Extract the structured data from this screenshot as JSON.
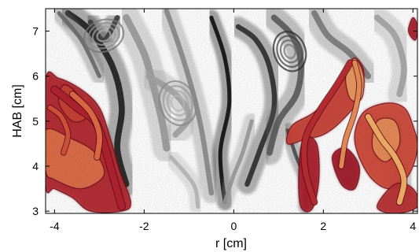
{
  "chart_data": {
    "type": "heatmap",
    "title": "",
    "xlabel": "r [cm]",
    "ylabel": "HAB [cm]",
    "xlim": [
      -4.2,
      4.1
    ],
    "ylim": [
      2.95,
      7.5
    ],
    "xticks": [
      -4,
      -2,
      0,
      2,
      4
    ],
    "yticks": [
      3,
      4,
      5,
      6,
      7
    ],
    "grid": false,
    "legend": "none",
    "layers": [
      {
        "name": "grayscale",
        "colormap": [
          "#ffffff",
          "#9a9a9a",
          "#000000"
        ]
      },
      {
        "name": "hot",
        "colormap": [
          "#5a0a14",
          "#b02030",
          "#e06040",
          "#f8d27a"
        ]
      }
    ],
    "gray_streaks": [
      {
        "pts": [
          [
            -3.7,
            7.4
          ],
          [
            -3.2,
            7.0
          ],
          [
            -2.7,
            6.2
          ],
          [
            -2.5,
            5.3
          ],
          [
            -2.6,
            4.4
          ],
          [
            -2.4,
            3.6
          ]
        ],
        "level": 0.9,
        "w": 0.3
      },
      {
        "pts": [
          [
            -3.2,
            7.2
          ],
          [
            -2.9,
            6.8
          ],
          [
            -2.6,
            7.3
          ]
        ],
        "level": 0.8,
        "w": 0.25
      },
      {
        "pts": [
          [
            -2.4,
            7.3
          ],
          [
            -2.0,
            6.5
          ],
          [
            -1.8,
            5.8
          ],
          [
            -1.6,
            5.0
          ],
          [
            -1.5,
            4.4
          ]
        ],
        "level": 0.5,
        "w": 0.35
      },
      {
        "pts": [
          [
            -1.5,
            7.45
          ],
          [
            -1.2,
            6.6
          ],
          [
            -0.9,
            5.6
          ],
          [
            -0.7,
            4.7
          ],
          [
            -0.5,
            3.4
          ]
        ],
        "level": 0.55,
        "w": 0.25
      },
      {
        "pts": [
          [
            -1.9,
            6.0
          ],
          [
            -1.3,
            5.6
          ],
          [
            -1.0,
            5.1
          ],
          [
            -1.3,
            4.7
          ]
        ],
        "level": 0.45,
        "w": 0.3
      },
      {
        "pts": [
          [
            -0.5,
            7.3
          ],
          [
            -0.2,
            6.4
          ],
          [
            -0.1,
            5.4
          ],
          [
            -0.3,
            4.3
          ],
          [
            -0.2,
            3.2
          ]
        ],
        "level": 0.95,
        "w": 0.2
      },
      {
        "pts": [
          [
            0.1,
            7.1
          ],
          [
            0.5,
            6.8
          ],
          [
            0.8,
            6.2
          ],
          [
            0.9,
            5.3
          ],
          [
            0.6,
            4.4
          ],
          [
            0.3,
            3.6
          ]
        ],
        "level": 0.85,
        "w": 0.25
      },
      {
        "pts": [
          [
            0.9,
            7.3
          ],
          [
            1.3,
            6.9
          ],
          [
            1.5,
            6.3
          ],
          [
            1.4,
            5.6
          ],
          [
            1.0,
            5.0
          ],
          [
            0.8,
            4.3
          ]
        ],
        "level": 0.7,
        "w": 0.3
      },
      {
        "pts": [
          [
            1.8,
            7.4
          ],
          [
            2.1,
            6.9
          ],
          [
            2.6,
            6.5
          ],
          [
            3.0,
            6.0
          ]
        ],
        "level": 0.6,
        "w": 0.3
      },
      {
        "pts": [
          [
            3.2,
            7.3
          ],
          [
            3.6,
            6.9
          ],
          [
            3.8,
            6.2
          ],
          [
            3.7,
            5.6
          ]
        ],
        "level": 0.45,
        "w": 0.3
      },
      {
        "pts": [
          [
            0.4,
            5.0
          ],
          [
            0.2,
            4.3
          ],
          [
            0.0,
            3.8
          ],
          [
            -0.2,
            3.2
          ]
        ],
        "level": 0.5,
        "w": 0.2
      },
      {
        "pts": [
          [
            1.2,
            4.8
          ],
          [
            1.4,
            4.2
          ],
          [
            1.6,
            3.7
          ],
          [
            1.6,
            3.1
          ]
        ],
        "level": 0.75,
        "w": 0.18
      },
      {
        "pts": [
          [
            3.3,
            4.6
          ],
          [
            3.6,
            4.0
          ],
          [
            3.9,
            3.4
          ]
        ],
        "level": 0.55,
        "w": 0.3
      },
      {
        "pts": [
          [
            -3.9,
            7.4
          ],
          [
            -3.4,
            6.8
          ],
          [
            -3.0,
            6.0
          ]
        ],
        "level": 0.65,
        "w": 0.2
      },
      {
        "pts": [
          [
            -1.4,
            4.2
          ],
          [
            -0.9,
            3.6
          ],
          [
            -0.8,
            3.1
          ]
        ],
        "level": 0.35,
        "w": 0.2
      }
    ],
    "gray_vortices": [
      {
        "cx": 1.25,
        "cy": 6.55,
        "rx": 0.35,
        "ry": 0.45,
        "level": 0.85
      },
      {
        "cx": -1.25,
        "cy": 5.4,
        "rx": 0.4,
        "ry": 0.5,
        "level": 0.55
      },
      {
        "cx": -2.9,
        "cy": 6.9,
        "rx": 0.45,
        "ry": 0.35,
        "level": 0.6
      }
    ],
    "hot_regions": [
      {
        "pts": [
          [
            -4.2,
            5.9
          ],
          [
            -3.9,
            5.95
          ],
          [
            -3.4,
            5.7
          ],
          [
            -3.0,
            5.3
          ],
          [
            -2.75,
            4.6
          ],
          [
            -2.55,
            3.9
          ],
          [
            -2.3,
            3.2
          ],
          [
            -2.5,
            3.0
          ],
          [
            -3.2,
            3.0
          ],
          [
            -3.6,
            3.3
          ],
          [
            -4.0,
            3.5
          ],
          [
            -4.2,
            3.6
          ]
        ],
        "level": 0.4
      },
      {
        "pts": [
          [
            -4.2,
            4.8
          ],
          [
            -3.6,
            4.6
          ],
          [
            -3.1,
            4.3
          ],
          [
            -2.9,
            3.8
          ],
          [
            -3.4,
            3.5
          ],
          [
            -4.0,
            3.7
          ],
          [
            -4.2,
            3.9
          ]
        ],
        "level": 0.75
      },
      {
        "pts": [
          [
            -3.8,
            5.8
          ],
          [
            -3.5,
            5.6
          ],
          [
            -3.3,
            5.1
          ],
          [
            -3.6,
            5.0
          ],
          [
            -3.9,
            5.4
          ]
        ],
        "level": 0.55
      },
      {
        "pts": [
          [
            1.3,
            4.9
          ],
          [
            1.8,
            5.2
          ],
          [
            2.3,
            5.7
          ],
          [
            2.5,
            6.1
          ],
          [
            2.7,
            6.4
          ],
          [
            2.9,
            6.1
          ],
          [
            2.8,
            5.5
          ],
          [
            2.4,
            5.0
          ],
          [
            2.0,
            4.7
          ],
          [
            1.6,
            4.6
          ],
          [
            1.2,
            4.5
          ]
        ],
        "level": 0.55
      },
      {
        "pts": [
          [
            2.5,
            6.0
          ],
          [
            2.7,
            6.4
          ],
          [
            2.9,
            6.0
          ],
          [
            2.85,
            5.5
          ],
          [
            2.6,
            5.5
          ]
        ],
        "level": 0.9
      },
      {
        "pts": [
          [
            2.9,
            5.2
          ],
          [
            3.4,
            5.4
          ],
          [
            3.8,
            5.3
          ],
          [
            4.0,
            4.9
          ],
          [
            4.1,
            4.4
          ],
          [
            3.9,
            3.8
          ],
          [
            3.5,
            3.5
          ],
          [
            3.1,
            3.7
          ],
          [
            2.8,
            4.2
          ],
          [
            2.7,
            4.7
          ]
        ],
        "level": 0.6
      },
      {
        "pts": [
          [
            3.2,
            5.0
          ],
          [
            3.6,
            5.0
          ],
          [
            3.7,
            4.5
          ],
          [
            3.4,
            4.1
          ],
          [
            3.1,
            4.4
          ]
        ],
        "level": 0.85
      },
      {
        "pts": [
          [
            3.6,
            3.6
          ],
          [
            4.0,
            3.5
          ],
          [
            4.1,
            3.1
          ],
          [
            3.6,
            2.95
          ],
          [
            3.2,
            3.1
          ]
        ],
        "level": 0.45
      },
      {
        "pts": [
          [
            1.55,
            4.6
          ],
          [
            1.85,
            4.5
          ],
          [
            1.9,
            3.7
          ],
          [
            1.75,
            3.05
          ],
          [
            1.5,
            3.1
          ],
          [
            1.45,
            3.8
          ]
        ],
        "level": 0.35
      },
      {
        "pts": [
          [
            2.2,
            4.2
          ],
          [
            2.5,
            4.4
          ],
          [
            2.8,
            4.0
          ],
          [
            2.7,
            3.5
          ],
          [
            2.4,
            3.6
          ]
        ],
        "level": 0.3
      },
      {
        "pts": [
          [
            4.0,
            7.3
          ],
          [
            4.1,
            7.1
          ],
          [
            4.05,
            6.8
          ],
          [
            3.9,
            7.0
          ]
        ],
        "level": 0.35
      }
    ],
    "hot_curves": [
      {
        "pts": [
          [
            -4.0,
            5.7
          ],
          [
            -3.8,
            5.55
          ],
          [
            -3.5,
            5.3
          ],
          [
            -3.1,
            5.0
          ],
          [
            -2.9,
            4.5
          ],
          [
            -2.7,
            3.8
          ],
          [
            -2.5,
            3.1
          ]
        ],
        "level": 0.35,
        "w": 0.15
      },
      {
        "pts": [
          [
            -3.6,
            5.6
          ],
          [
            -3.2,
            5.2
          ],
          [
            -3.0,
            4.7
          ],
          [
            -3.05,
            4.2
          ]
        ],
        "level": 0.7,
        "w": 0.12
      },
      {
        "pts": [
          [
            -4.1,
            5.3
          ],
          [
            -3.85,
            5.1
          ],
          [
            -3.7,
            4.7
          ],
          [
            -3.8,
            4.3
          ]
        ],
        "level": 0.6,
        "w": 0.1
      },
      {
        "pts": [
          [
            2.6,
            6.3
          ],
          [
            2.3,
            5.8
          ],
          [
            1.9,
            5.2
          ],
          [
            1.6,
            4.6
          ],
          [
            1.6,
            3.9
          ],
          [
            1.8,
            3.2
          ]
        ],
        "level": 0.4,
        "w": 0.12
      },
      {
        "pts": [
          [
            2.7,
            6.3
          ],
          [
            2.8,
            5.8
          ],
          [
            2.7,
            5.2
          ],
          [
            2.5,
            4.6
          ],
          [
            2.4,
            4.0
          ]
        ],
        "level": 0.8,
        "w": 0.1
      },
      {
        "pts": [
          [
            3.0,
            5.1
          ],
          [
            3.3,
            4.6
          ],
          [
            3.6,
            4.2
          ],
          [
            3.8,
            3.7
          ],
          [
            3.7,
            3.2
          ]
        ],
        "level": 0.9,
        "w": 0.12
      }
    ]
  }
}
